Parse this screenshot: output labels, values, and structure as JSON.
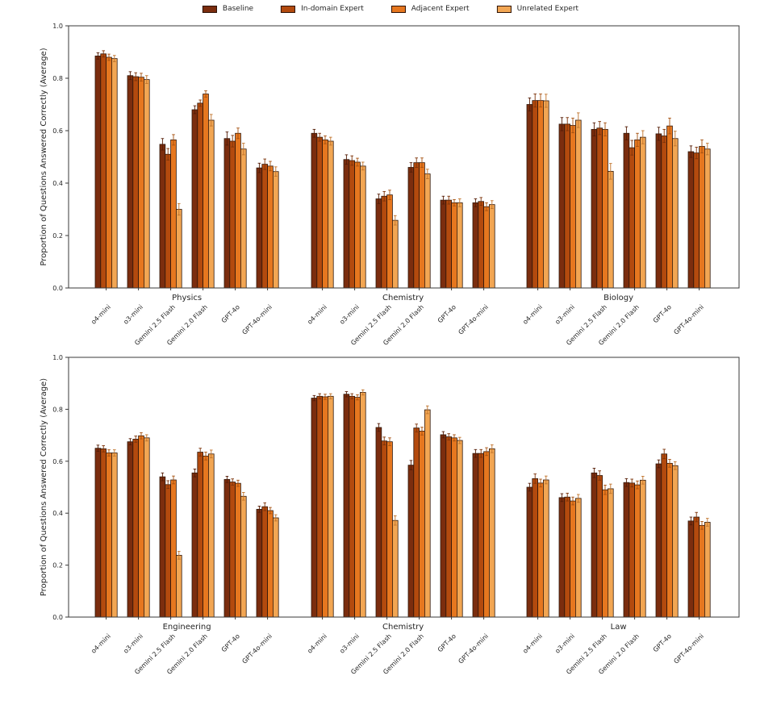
{
  "legend": {
    "entries": [
      {
        "label": "Baseline",
        "color": "#7b2d0e"
      },
      {
        "label": "In-domain Expert",
        "color": "#b34a0e"
      },
      {
        "label": "Adjacent Expert",
        "color": "#e6771f"
      },
      {
        "label": "Unrelated Expert",
        "color": "#f2a653"
      }
    ]
  },
  "colors": {
    "bars": [
      "#7b2d0e",
      "#b34a0e",
      "#e6771f",
      "#f2a653"
    ],
    "bar_edge": "#30170a",
    "error_bars": [
      "#541c06",
      "#7c3309",
      "#a5500f",
      "#c0742c"
    ],
    "axis": "#3a3a3a",
    "text": "#262626"
  },
  "chart_data": [
    {
      "type": "bar",
      "title": "",
      "ylabel": "Proportion of Questions Answered Correctly (Average)",
      "ylim": [
        0.0,
        1.0
      ],
      "yticks": [
        "0.0",
        "0.2",
        "0.4",
        "0.6",
        "0.8",
        "1.0"
      ],
      "legend_entries": [
        "Baseline",
        "In-domain Expert",
        "Adjacent Expert",
        "Unrelated Expert"
      ],
      "models": [
        "o4-mini",
        "o3-mini",
        "Gemini 2.5 Flash",
        "Gemini 2.0 Flash",
        "GPT-4o",
        "GPT-4o-mini"
      ],
      "groups": [
        {
          "label": "Physics",
          "series": [
            {
              "name": "Baseline",
              "values": [
                0.885,
                0.81,
                0.548,
                0.68,
                0.57,
                0.458
              ],
              "errors": [
                0.012,
                0.015,
                0.022,
                0.015,
                0.025,
                0.018
              ]
            },
            {
              "name": "In-domain Expert",
              "values": [
                0.893,
                0.806,
                0.51,
                0.705,
                0.56,
                0.472
              ],
              "errors": [
                0.012,
                0.015,
                0.022,
                0.012,
                0.022,
                0.02
              ]
            },
            {
              "name": "Adjacent Expert",
              "values": [
                0.88,
                0.804,
                0.565,
                0.74,
                0.59,
                0.465
              ],
              "errors": [
                0.012,
                0.015,
                0.02,
                0.012,
                0.02,
                0.018
              ]
            },
            {
              "name": "Unrelated Expert",
              "values": [
                0.875,
                0.795,
                0.3,
                0.64,
                0.53,
                0.444
              ],
              "errors": [
                0.012,
                0.015,
                0.022,
                0.022,
                0.022,
                0.018
              ]
            }
          ]
        },
        {
          "label": "Chemistry",
          "series": [
            {
              "name": "Baseline",
              "values": [
                0.59,
                0.49,
                0.34,
                0.46,
                0.335,
                0.325
              ],
              "errors": [
                0.015,
                0.018,
                0.018,
                0.018,
                0.015,
                0.015
              ]
            },
            {
              "name": "In-domain Expert",
              "values": [
                0.575,
                0.486,
                0.35,
                0.478,
                0.335,
                0.33
              ],
              "errors": [
                0.015,
                0.018,
                0.018,
                0.018,
                0.015,
                0.015
              ]
            },
            {
              "name": "Adjacent Expert",
              "values": [
                0.565,
                0.48,
                0.355,
                0.478,
                0.325,
                0.31
              ],
              "errors": [
                0.015,
                0.015,
                0.018,
                0.018,
                0.012,
                0.015
              ]
            },
            {
              "name": "Unrelated Expert",
              "values": [
                0.56,
                0.465,
                0.258,
                0.435,
                0.325,
                0.318
              ],
              "errors": [
                0.015,
                0.015,
                0.018,
                0.018,
                0.015,
                0.015
              ]
            }
          ]
        },
        {
          "label": "Biology",
          "series": [
            {
              "name": "Baseline",
              "values": [
                0.7,
                0.625,
                0.605,
                0.59,
                0.588,
                0.52
              ],
              "errors": [
                0.025,
                0.025,
                0.025,
                0.025,
                0.025,
                0.022
              ]
            },
            {
              "name": "In-domain Expert",
              "values": [
                0.715,
                0.625,
                0.61,
                0.535,
                0.58,
                0.515
              ],
              "errors": [
                0.025,
                0.025,
                0.025,
                0.028,
                0.025,
                0.022
              ]
            },
            {
              "name": "Adjacent Expert",
              "values": [
                0.715,
                0.62,
                0.605,
                0.565,
                0.618,
                0.54
              ],
              "errors": [
                0.025,
                0.028,
                0.025,
                0.025,
                0.03,
                0.025
              ]
            },
            {
              "name": "Unrelated Expert",
              "values": [
                0.714,
                0.64,
                0.445,
                0.575,
                0.57,
                0.53
              ],
              "errors": [
                0.025,
                0.028,
                0.03,
                0.025,
                0.028,
                0.022
              ]
            }
          ]
        }
      ]
    },
    {
      "type": "bar",
      "title": "",
      "ylabel": "Proportion of Questions Answered Correctly (Average)",
      "ylim": [
        0.0,
        1.0
      ],
      "yticks": [
        "0.0",
        "0.2",
        "0.4",
        "0.6",
        "0.8",
        "1.0"
      ],
      "legend_entries": [
        "Baseline",
        "In-domain Expert",
        "Adjacent Expert",
        "Unrelated Expert"
      ],
      "models": [
        "o4-mini",
        "o3-mini",
        "Gemini 2.5 Flash",
        "Gemini 2.0 Flash",
        "GPT-4o",
        "GPT-4o-mini"
      ],
      "groups": [
        {
          "label": "Engineering",
          "series": [
            {
              "name": "Baseline",
              "values": [
                0.65,
                0.675,
                0.54,
                0.555,
                0.53,
                0.415
              ],
              "errors": [
                0.012,
                0.012,
                0.015,
                0.015,
                0.012,
                0.012
              ]
            },
            {
              "name": "In-domain Expert",
              "values": [
                0.648,
                0.685,
                0.51,
                0.635,
                0.52,
                0.425
              ],
              "errors": [
                0.012,
                0.012,
                0.015,
                0.015,
                0.012,
                0.015
              ]
            },
            {
              "name": "Adjacent Expert",
              "values": [
                0.632,
                0.698,
                0.528,
                0.62,
                0.515,
                0.41
              ],
              "errors": [
                0.012,
                0.012,
                0.015,
                0.015,
                0.012,
                0.012
              ]
            },
            {
              "name": "Unrelated Expert",
              "values": [
                0.632,
                0.69,
                0.238,
                0.628,
                0.465,
                0.382
              ],
              "errors": [
                0.012,
                0.012,
                0.015,
                0.015,
                0.015,
                0.012
              ]
            }
          ]
        },
        {
          "label": "Chemistry",
          "series": [
            {
              "name": "Baseline",
              "values": [
                0.843,
                0.858,
                0.73,
                0.585,
                0.702,
                0.63
              ],
              "errors": [
                0.01,
                0.01,
                0.015,
                0.018,
                0.012,
                0.015
              ]
            },
            {
              "name": "In-domain Expert",
              "values": [
                0.85,
                0.85,
                0.678,
                0.728,
                0.694,
                0.63
              ],
              "errors": [
                0.01,
                0.01,
                0.015,
                0.015,
                0.012,
                0.015
              ]
            },
            {
              "name": "Adjacent Expert",
              "values": [
                0.848,
                0.846,
                0.675,
                0.716,
                0.69,
                0.637
              ],
              "errors": [
                0.01,
                0.01,
                0.015,
                0.015,
                0.012,
                0.015
              ]
            },
            {
              "name": "Unrelated Expert",
              "values": [
                0.85,
                0.865,
                0.372,
                0.798,
                0.68,
                0.648
              ],
              "errors": [
                0.01,
                0.01,
                0.018,
                0.015,
                0.012,
                0.015
              ]
            }
          ]
        },
        {
          "label": "Law",
          "series": [
            {
              "name": "Baseline",
              "values": [
                0.5,
                0.46,
                0.555,
                0.518,
                0.59,
                0.37
              ],
              "errors": [
                0.015,
                0.015,
                0.018,
                0.015,
                0.015,
                0.015
              ]
            },
            {
              "name": "In-domain Expert",
              "values": [
                0.533,
                0.462,
                0.545,
                0.516,
                0.628,
                0.385
              ],
              "errors": [
                0.018,
                0.015,
                0.018,
                0.015,
                0.018,
                0.018
              ]
            },
            {
              "name": "Adjacent Expert",
              "values": [
                0.516,
                0.447,
                0.49,
                0.509,
                0.592,
                0.353
              ],
              "errors": [
                0.015,
                0.015,
                0.018,
                0.015,
                0.015,
                0.015
              ]
            },
            {
              "name": "Unrelated Expert",
              "values": [
                0.528,
                0.457,
                0.494,
                0.527,
                0.583,
                0.365
              ],
              "errors": [
                0.015,
                0.015,
                0.018,
                0.015,
                0.015,
                0.015
              ]
            }
          ]
        }
      ]
    }
  ]
}
